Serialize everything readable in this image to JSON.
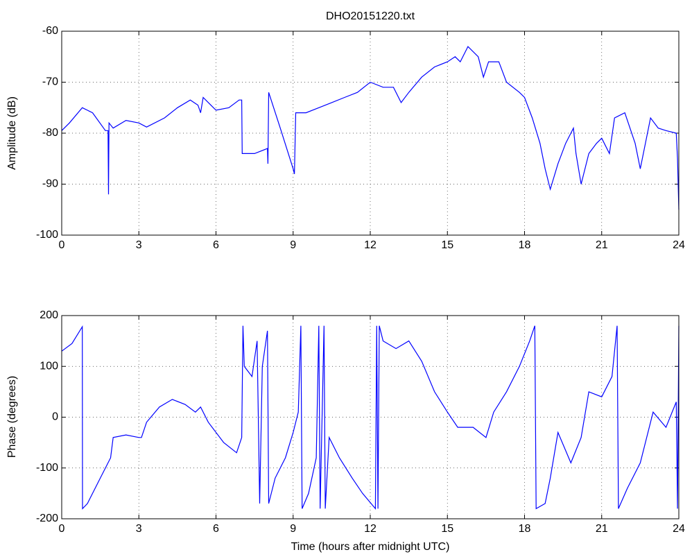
{
  "chart_data": [
    {
      "type": "line",
      "title": "DHO20151220.txt",
      "ylabel": "Amplitude (dB)",
      "grid": true,
      "xlim": [
        0,
        24
      ],
      "xticks": [
        0,
        3,
        6,
        9,
        12,
        15,
        18,
        21,
        24
      ],
      "ylim": [
        -100,
        -60
      ],
      "yticks": [
        -100,
        -90,
        -80,
        -70,
        -60
      ],
      "series": [
        {
          "name": "Amplitude",
          "color": "#0000ff",
          "x": [
            0,
            0.3,
            0.8,
            1.2,
            1.7,
            1.8,
            1.82,
            1.84,
            2.0,
            2.5,
            3.0,
            3.3,
            4.0,
            4.5,
            5.0,
            5.3,
            5.4,
            5.5,
            5.8,
            6.0,
            6.5,
            6.9,
            7.0,
            7.02,
            7.5,
            8.0,
            8.02,
            8.05,
            8.5,
            9.0,
            9.05,
            9.1,
            9.5,
            10.0,
            10.5,
            11.0,
            11.5,
            12.0,
            12.5,
            12.9,
            13.2,
            13.5,
            14.0,
            14.5,
            15.0,
            15.3,
            15.5,
            15.8,
            16.2,
            16.4,
            16.6,
            17.0,
            17.3,
            17.8,
            18.0,
            18.3,
            18.6,
            18.8,
            19.0,
            19.3,
            19.6,
            19.9,
            20.0,
            20.2,
            20.5,
            20.8,
            21.0,
            21.3,
            21.5,
            21.9,
            22.3,
            22.5,
            22.9,
            23.2,
            23.5,
            23.9,
            23.95,
            24.0
          ],
          "values": [
            -79.5,
            -78,
            -75,
            -76,
            -79.5,
            -79.5,
            -92,
            -78,
            -79,
            -77.5,
            -78,
            -78.8,
            -77,
            -75,
            -73.5,
            -74.5,
            -76,
            -73,
            -74.5,
            -75.5,
            -75,
            -73.5,
            -73.5,
            -84,
            -84,
            -83,
            -86,
            -72,
            -79,
            -87,
            -88,
            -76,
            -76,
            -75,
            -74,
            -73,
            -72,
            -70,
            -71,
            -71,
            -74,
            -72,
            -69,
            -67,
            -66,
            -65,
            -66,
            -63,
            -65,
            -69,
            -66,
            -66,
            -70,
            -72,
            -73,
            -77,
            -82,
            -87,
            -91,
            -86,
            -82,
            -79,
            -84,
            -90,
            -84,
            -82,
            -81,
            -84,
            -77,
            -76,
            -82,
            -87,
            -77,
            -79,
            -79.5,
            -80,
            -85,
            -95
          ]
        }
      ]
    },
    {
      "type": "line",
      "ylabel": "Phase (degrees)",
      "xlabel": "Time (hours after midnight UTC)",
      "grid": true,
      "xlim": [
        0,
        24
      ],
      "xticks": [
        0,
        3,
        6,
        9,
        12,
        15,
        18,
        21,
        24
      ],
      "ylim": [
        -200,
        200
      ],
      "yticks": [
        -200,
        -100,
        0,
        100,
        200
      ],
      "series": [
        {
          "name": "Phase",
          "color": "#0000ff",
          "x": [
            0,
            0.4,
            0.8,
            0.81,
            1.0,
            1.5,
            1.9,
            2.0,
            2.5,
            3.0,
            3.1,
            3.3,
            3.8,
            4.3,
            4.8,
            5.2,
            5.4,
            5.7,
            6.3,
            6.8,
            7.0,
            7.05,
            7.1,
            7.4,
            7.6,
            7.7,
            7.8,
            8.0,
            8.05,
            8.3,
            8.7,
            9.0,
            9.2,
            9.3,
            9.35,
            9.6,
            9.9,
            10.0,
            10.05,
            10.2,
            10.25,
            10.4,
            10.8,
            11.3,
            11.7,
            12.2,
            12.25,
            12.3,
            12.35,
            12.5,
            13.0,
            13.5,
            14.0,
            14.5,
            15.0,
            15.4,
            16.0,
            16.5,
            16.8,
            17.3,
            17.8,
            18.2,
            18.4,
            18.45,
            18.8,
            19.0,
            19.3,
            19.8,
            20.2,
            20.5,
            21.0,
            21.4,
            21.6,
            21.65,
            22.0,
            22.5,
            23.0,
            23.5,
            23.9,
            23.95,
            24.0
          ],
          "values": [
            130,
            145,
            178,
            -180,
            -170,
            -120,
            -80,
            -40,
            -35,
            -40,
            -40,
            -10,
            20,
            35,
            25,
            10,
            20,
            -10,
            -50,
            -70,
            -40,
            180,
            100,
            80,
            150,
            -170,
            100,
            170,
            -170,
            -120,
            -80,
            -30,
            10,
            180,
            -180,
            -150,
            -80,
            180,
            -180,
            180,
            -180,
            -40,
            -80,
            -120,
            -150,
            -180,
            180,
            -180,
            180,
            150,
            135,
            150,
            110,
            50,
            10,
            -20,
            -20,
            -40,
            10,
            50,
            100,
            150,
            180,
            -180,
            -170,
            -120,
            -30,
            -90,
            -40,
            50,
            40,
            80,
            180,
            -180,
            -140,
            -90,
            10,
            -20,
            30,
            -180,
            180
          ]
        }
      ]
    }
  ]
}
